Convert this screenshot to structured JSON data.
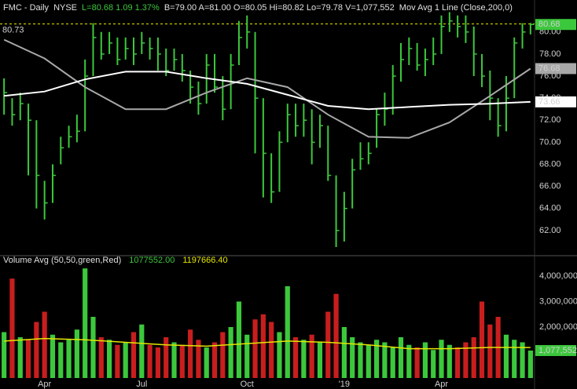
{
  "chart_data": [
    {
      "type": "ohlc",
      "header": {
        "title": "FMC - Daily",
        "exchange": "NYSE",
        "quote": "L=80.68  1.09  1.37%",
        "stats": "B=79.00  A=81.00  O=80.05  Hi=80.82  Lo=79.78  V=1,077,552",
        "indicator": "Mov Avg 1 Line (Close,200,0)"
      },
      "color": "#3cc83c",
      "close": [
        74.5,
        72.5,
        73.5,
        72,
        67,
        64.5,
        67,
        69.5,
        70.5,
        71,
        76,
        79.5,
        78,
        79,
        77.5,
        78.5,
        78,
        79,
        78.5,
        78,
        76.5,
        77.5,
        76.5,
        75,
        73.5,
        77,
        75,
        73,
        77,
        79.5,
        80,
        74,
        69,
        65.5,
        70,
        72.5,
        71.5,
        72,
        70,
        71.5,
        67,
        62,
        64,
        67.5,
        68.5,
        69,
        72.5,
        73,
        76,
        77.5,
        78.5,
        77,
        77.5,
        78,
        80.5,
        81,
        80.5,
        80,
        78,
        76,
        74,
        71.5,
        74,
        79,
        80,
        80.68
      ],
      "high": [
        75.8,
        74,
        74.5,
        73.5,
        72,
        66.5,
        68,
        70.5,
        71.5,
        72.5,
        77.5,
        80.8,
        80,
        80,
        79.5,
        79.5,
        79.5,
        80,
        79.5,
        79.5,
        78.5,
        78.5,
        78,
        76.5,
        75.5,
        78,
        78,
        76,
        78,
        81,
        81.5,
        80,
        74,
        69,
        71,
        73.5,
        73.5,
        73.5,
        73,
        72.5,
        71.5,
        67,
        65.5,
        68.5,
        70,
        70,
        73,
        74.5,
        77,
        79,
        79.5,
        79,
        78.5,
        79.5,
        81.5,
        81.8,
        81.5,
        81.5,
        80.5,
        78,
        76.5,
        74,
        76,
        79.5,
        80.8,
        80.82
      ],
      "low": [
        72.5,
        71.5,
        72,
        67,
        64,
        63,
        64.5,
        68,
        69.5,
        70,
        71,
        76,
        77.5,
        78,
        77,
        77.5,
        77,
        78,
        77.5,
        76.5,
        76,
        76.5,
        75.5,
        73.5,
        72.5,
        73.5,
        74.5,
        72,
        73,
        77,
        78.5,
        69,
        65,
        64.5,
        65.5,
        70,
        70.5,
        70.5,
        68,
        69.5,
        66.5,
        60.5,
        61,
        64,
        67.5,
        68,
        69.5,
        71.5,
        72.5,
        75.5,
        77,
        76.5,
        76,
        77,
        78,
        80,
        79.5,
        79,
        76,
        75,
        72,
        70.5,
        71,
        74,
        78.5,
        79.78
      ],
      "moving_averages": [
        {
          "color": "#a8a8a8",
          "x": [
            0,
            5,
            10,
            15,
            20,
            25,
            30,
            35,
            40,
            45,
            50,
            55,
            60,
            65
          ],
          "values": [
            79.3,
            77.6,
            75,
            73,
            73,
            74.5,
            75.8,
            75,
            72.5,
            70.5,
            70.4,
            71.8,
            74.2,
            76.68
          ]
        },
        {
          "color": "#ffffff",
          "x": [
            0,
            5,
            10,
            15,
            20,
            25,
            30,
            35,
            40,
            45,
            50,
            55,
            60,
            65
          ],
          "values": [
            74.2,
            74.6,
            75.7,
            76.4,
            76.4,
            75.8,
            75.3,
            74.3,
            73.3,
            73,
            73.2,
            73.4,
            73.5,
            73.66
          ]
        }
      ],
      "ref_line": 80.73,
      "ref_color": "#e6e600",
      "ylim": [
        60,
        82.9
      ],
      "yticks": [
        {
          "value": 62,
          "label": "62.00"
        },
        {
          "value": 64,
          "label": "64.00"
        },
        {
          "value": 66,
          "label": "66.00"
        },
        {
          "value": 68,
          "label": "68.00"
        },
        {
          "value": 70,
          "label": "70.00"
        },
        {
          "value": 72,
          "label": "72.00"
        },
        {
          "value": 74,
          "label": "74.00"
        },
        {
          "value": 76,
          "label": "76.00"
        },
        {
          "value": 78,
          "label": "78.00"
        },
        {
          "value": 80,
          "label": "80.00"
        }
      ]
    },
    {
      "type": "bar",
      "legend": {
        "title": "Volume Avg (50,50,green,Red)",
        "values": [
          {
            "value": 1077552,
            "label": "1077552.00",
            "color": "#3cc83c"
          },
          {
            "value": 1197666.4,
            "label": "1197666.40",
            "color": "#e6e600"
          }
        ]
      },
      "categories": [
        null,
        null,
        null,
        null,
        null,
        "Apr",
        null,
        null,
        null,
        null,
        null,
        null,
        null,
        null,
        null,
        null,
        null,
        "Jul",
        null,
        null,
        null,
        null,
        null,
        null,
        null,
        null,
        null,
        null,
        null,
        null,
        "Oct",
        null,
        null,
        null,
        null,
        null,
        null,
        null,
        null,
        null,
        null,
        null,
        "'19",
        null,
        null,
        null,
        null,
        null,
        null,
        null,
        null,
        null,
        null,
        null,
        "Apr",
        null,
        null,
        null,
        null,
        null,
        null,
        null,
        null,
        null,
        null,
        null
      ],
      "values": [
        1800000,
        3900000,
        1600000,
        1500000,
        2200000,
        2600000,
        1700000,
        1400000,
        1500000,
        1900000,
        4300000,
        2400000,
        1600000,
        1500000,
        1300000,
        1400000,
        1800000,
        2100000,
        1300000,
        1200000,
        1600000,
        1400000,
        1300000,
        1900000,
        1500000,
        1200000,
        1400000,
        1800000,
        2000000,
        3000000,
        1700000,
        2300000,
        2500000,
        2200000,
        1800000,
        3600000,
        1600000,
        1500000,
        1700000,
        1400000,
        2600000,
        3300000,
        2000000,
        1600000,
        1400000,
        1300000,
        1500000,
        1400000,
        1200000,
        1600000,
        1300000,
        1200000,
        1400000,
        1100000,
        1500000,
        1300000,
        1200000,
        1400000,
        1600000,
        3000000,
        2100000,
        2400000,
        1700000,
        1500000,
        1400000,
        1077552
      ],
      "value_labels": [
        null,
        null,
        null,
        null,
        null,
        null,
        null,
        null,
        null,
        null,
        null,
        null,
        null,
        null,
        null,
        null,
        null,
        null,
        null,
        null,
        null,
        null,
        null,
        null,
        null,
        null,
        null,
        null,
        null,
        null,
        null,
        null,
        null,
        null,
        null,
        null,
        null,
        null,
        null,
        null,
        null,
        null,
        null,
        null,
        null,
        null,
        null,
        null,
        null,
        null,
        null,
        null,
        null,
        null,
        null,
        null,
        null,
        null,
        null,
        null,
        null,
        null,
        null,
        null,
        null,
        "1,077,552"
      ],
      "up_color": "#3cc83c",
      "down_color": "#c81e1e",
      "average": {
        "color": "#e6e600",
        "x": [
          0,
          5,
          10,
          15,
          20,
          25,
          30,
          35,
          40,
          45,
          50,
          55,
          60,
          65
        ],
        "values": [
          1450000,
          1550000,
          1500000,
          1400000,
          1300000,
          1250000,
          1350000,
          1450000,
          1400000,
          1300000,
          1150000,
          1150000,
          1200000,
          1197666.4
        ]
      },
      "ylim": [
        0,
        4430000
      ],
      "yticks": [
        {
          "value": 2000000,
          "label": "2,000,000"
        },
        {
          "value": 3000000,
          "label": "3,000,000"
        },
        {
          "value": 4000000,
          "label": "4,000,000"
        }
      ]
    }
  ]
}
